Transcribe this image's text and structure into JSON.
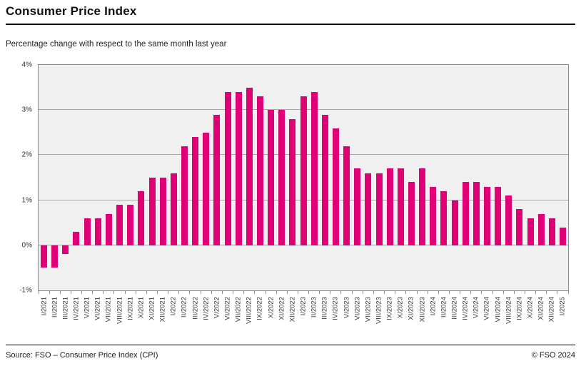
{
  "header": {
    "title": "Consumer Price Index",
    "subtitle": "Percentage change with respect to the same month last year"
  },
  "footer": {
    "source": "Source: FSO – Consumer Price Index (CPI)",
    "copyright": "© FSO 2024"
  },
  "chart_data": {
    "type": "bar",
    "title": "Consumer Price Index",
    "subtitle": "Percentage change with respect to the same month last year",
    "categories": [
      "I/2021",
      "II/2021",
      "III/2021",
      "IV/2021",
      "V/2021",
      "VI/2021",
      "VII/2021",
      "VIII/2021",
      "IX/2021",
      "X/2021",
      "XI/2021",
      "XII/2021",
      "I/2022",
      "II/2022",
      "III/2022",
      "IV/2022",
      "V/2022",
      "VI/2022",
      "VII/2022",
      "VIII/2022",
      "IX/2022",
      "X/2022",
      "XI/2022",
      "XII/2022",
      "I/2023",
      "II/2023",
      "III/2023",
      "IV/2023",
      "V/2023",
      "VI/2023",
      "VII/2023",
      "VIII/2023",
      "IX/2023",
      "X/2023",
      "XI/2023",
      "XII/2023",
      "I/2024",
      "II/2024",
      "III/2024",
      "IV/2024",
      "V/2024",
      "VI/2024",
      "VII/2024",
      "VIII/2024",
      "IX/2024",
      "X/2024",
      "XI/2024",
      "XII/2024",
      "I/2025"
    ],
    "values": [
      -0.5,
      -0.5,
      -0.2,
      0.3,
      0.6,
      0.6,
      0.7,
      0.9,
      0.9,
      1.2,
      1.5,
      1.5,
      1.6,
      2.2,
      2.4,
      2.5,
      2.9,
      3.4,
      3.4,
      3.5,
      3.3,
      3.0,
      3.0,
      2.8,
      3.3,
      3.4,
      2.9,
      2.6,
      2.2,
      1.7,
      1.6,
      1.6,
      1.7,
      1.7,
      1.4,
      1.7,
      1.3,
      1.2,
      1.0,
      1.4,
      1.4,
      1.3,
      1.3,
      1.1,
      0.8,
      0.6,
      0.7,
      0.6,
      0.4
    ],
    "xlabel": "",
    "ylabel": "",
    "y_ticks": [
      "4%",
      "3%",
      "2%",
      "1%",
      "0%",
      "-1%"
    ],
    "ylim": [
      -1,
      4
    ],
    "grid": true,
    "legend_position": "none",
    "bar_color": "#df0076",
    "plot_bg": "#f0f0f0",
    "grid_color": "#a6a6a6",
    "axis_color": "#8c8c8c"
  }
}
